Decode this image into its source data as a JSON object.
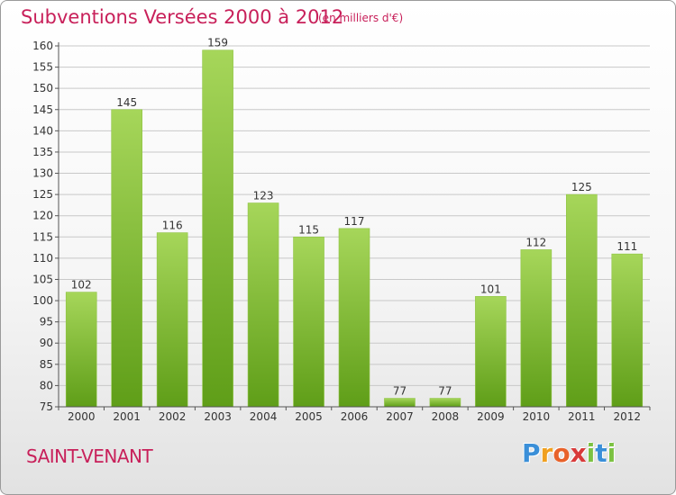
{
  "header": {
    "title": "Subventions Versées 2000 à 2012",
    "subtitle": "(en milliers d'€)"
  },
  "footer": {
    "place": "SAINT-VENANT",
    "brand": {
      "letters": [
        "P",
        "r",
        "o",
        "x",
        "i",
        "t",
        "i"
      ],
      "colors": [
        "#3a8fd8",
        "#f0a020",
        "#e8622a",
        "#d83a3a",
        "#7cc242",
        "#3a8fd8",
        "#7cc242"
      ]
    }
  },
  "colors": {
    "bar_top": "#a6d65a",
    "bar_bottom": "#5f9e18",
    "grid": "#c8c8c8",
    "axis": "#555555",
    "accent": "#c8205a"
  },
  "chart_data": {
    "type": "bar",
    "title": "Subventions Versées 2000 à 2012",
    "subtitle": "(en milliers d'€)",
    "categories": [
      "2000",
      "2001",
      "2002",
      "2003",
      "2004",
      "2005",
      "2006",
      "2007",
      "2008",
      "2009",
      "2010",
      "2011",
      "2012"
    ],
    "values": [
      102,
      145,
      116,
      159,
      123,
      115,
      117,
      77,
      77,
      101,
      112,
      125,
      111
    ],
    "ylim": [
      75,
      160
    ],
    "yticks": [
      75,
      80,
      85,
      90,
      95,
      100,
      105,
      110,
      115,
      120,
      125,
      130,
      135,
      140,
      145,
      150,
      155,
      160
    ],
    "grid": true,
    "data_labels": true
  }
}
